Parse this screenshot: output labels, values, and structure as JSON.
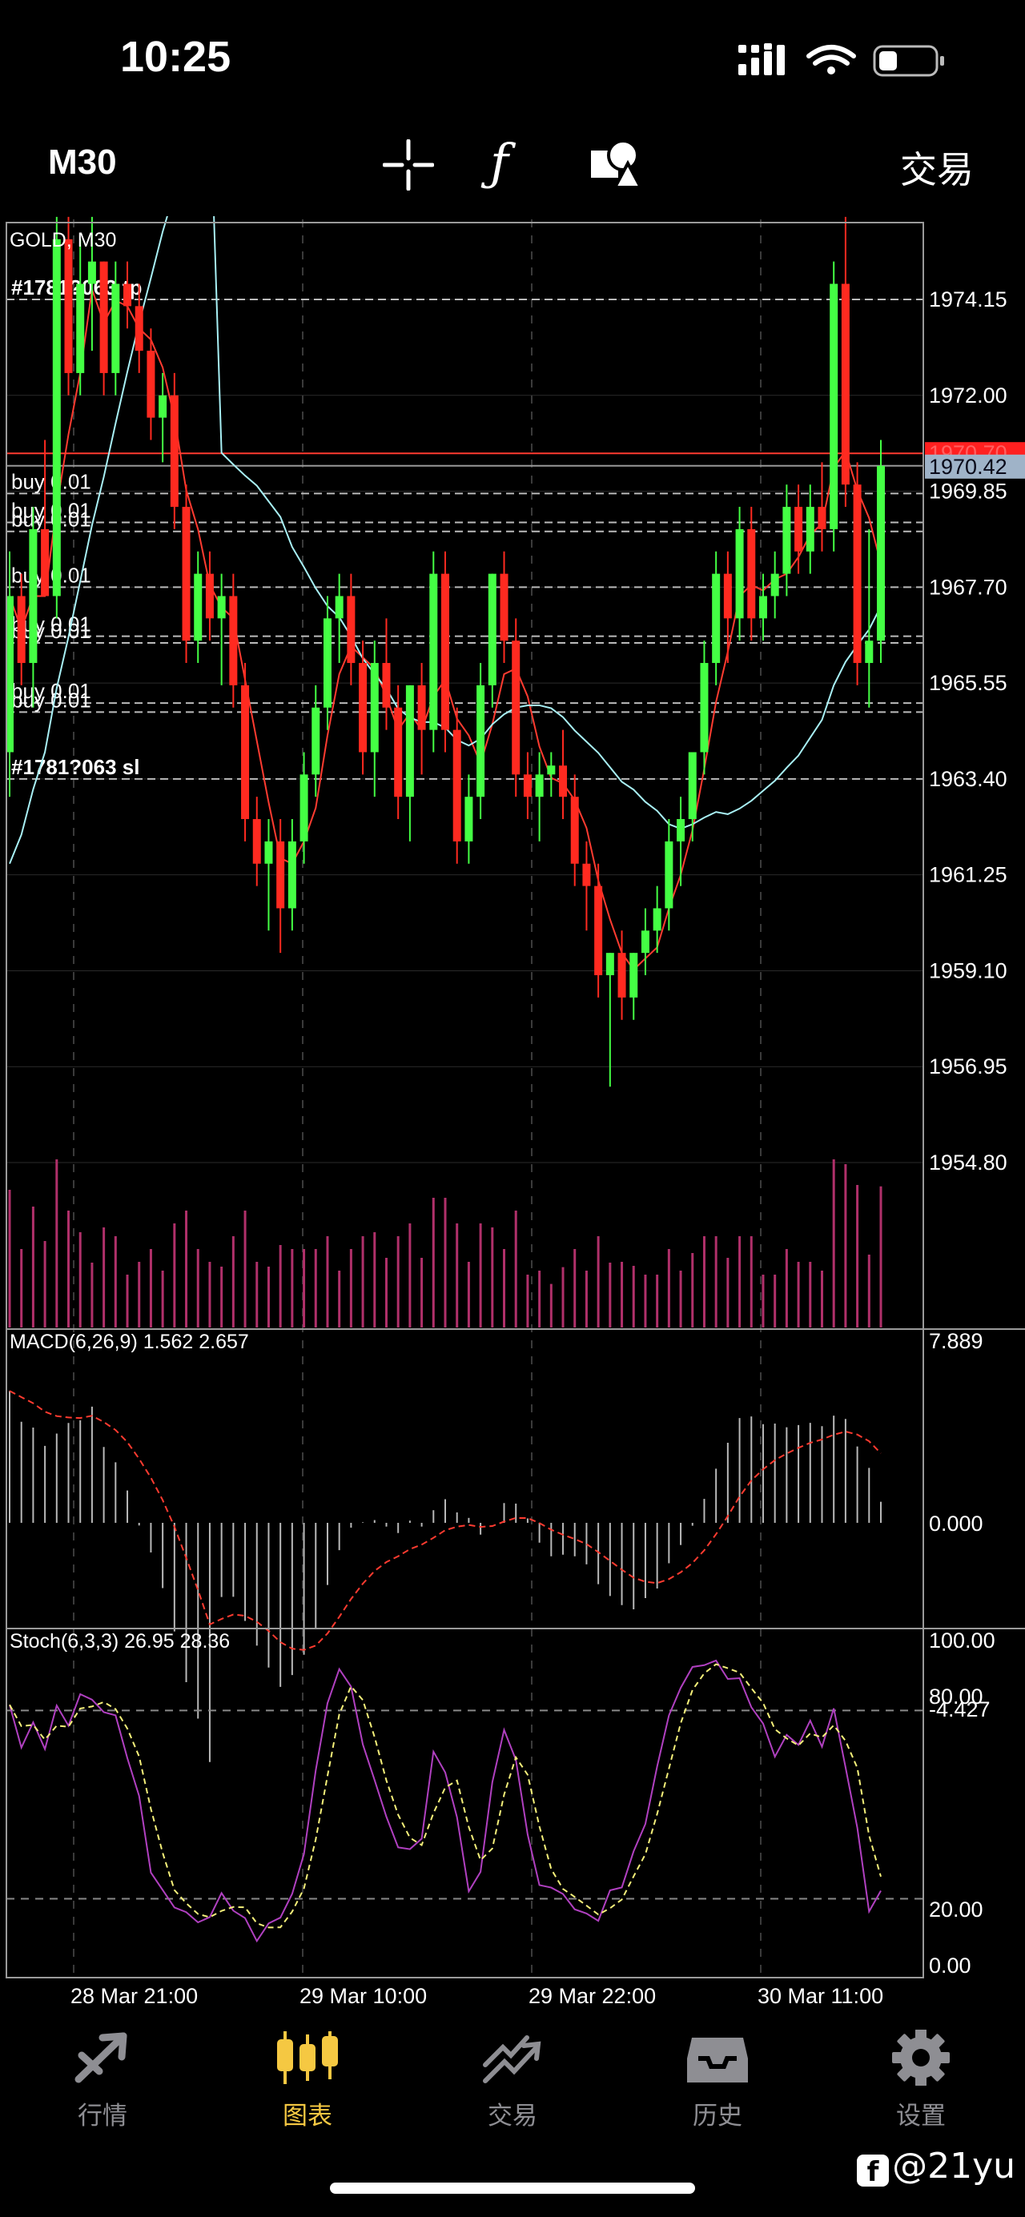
{
  "status_bar": {
    "time": "10:25"
  },
  "toolbar": {
    "timeframe": "M30",
    "trade_label": "交易",
    "icons": [
      "crosshair-icon",
      "function-icon",
      "objects-icon"
    ]
  },
  "chart": {
    "symbol_label": "GOLD, M30",
    "price_axis_labels": [
      "1974.15",
      "1972.00",
      "1969.85",
      "1967.70",
      "1965.55",
      "1963.40",
      "1961.25",
      "1959.10",
      "1956.95",
      "1954.80"
    ],
    "current_bid": "1970.42",
    "current_ask": "1970.70",
    "order_labels": {
      "tp": "#1781?063 tp",
      "sl": "#1781?063 sl",
      "buy": "buy 0.01"
    },
    "macd_label": "MACD(6,26,9) 1.562 2.657",
    "macd_axis": [
      "7.889",
      "0.000",
      "-4.427"
    ],
    "stoch_label": "Stoch(6,3,3) 26.95 28.36",
    "stoch_axis": [
      "100.00",
      "80.00",
      "20.00",
      "0.00"
    ],
    "time_labels": [
      "28 Mar 21:00",
      "29 Mar 10:00",
      "29 Mar 22:00",
      "30 Mar 11:00"
    ]
  },
  "chart_data": {
    "type": "candlestick",
    "symbol": "GOLD",
    "timeframe": "M30",
    "y_range": [
      1954.8,
      1976.0
    ],
    "candles": [
      [
        1964.0,
        1968.5,
        1963.0,
        1967.5
      ],
      [
        1967.5,
        1968.0,
        1965.5,
        1966.0
      ],
      [
        1966.0,
        1969.5,
        1965.0,
        1969.0
      ],
      [
        1969.0,
        1971.0,
        1967.5,
        1967.5
      ],
      [
        1967.5,
        1976.0,
        1967.0,
        1975.5
      ],
      [
        1975.5,
        1976.0,
        1972.0,
        1972.5
      ],
      [
        1972.5,
        1975.5,
        1972.0,
        1974.5
      ],
      [
        1974.5,
        1976.0,
        1973.0,
        1975.0
      ],
      [
        1975.0,
        1975.0,
        1972.0,
        1972.5
      ],
      [
        1972.5,
        1975.0,
        1972.0,
        1974.5
      ],
      [
        1974.5,
        1975.0,
        1973.5,
        1974.0
      ],
      [
        1974.0,
        1974.5,
        1972.5,
        1973.0
      ],
      [
        1973.0,
        1973.5,
        1971.0,
        1971.5
      ],
      [
        1971.5,
        1972.5,
        1970.5,
        1972.0
      ],
      [
        1972.0,
        1972.5,
        1969.0,
        1969.5
      ],
      [
        1969.5,
        1970.0,
        1966.0,
        1966.5
      ],
      [
        1966.5,
        1968.5,
        1966.0,
        1968.0
      ],
      [
        1968.0,
        1968.5,
        1966.5,
        1967.0
      ],
      [
        1967.0,
        1968.0,
        1965.5,
        1967.5
      ],
      [
        1967.5,
        1968.0,
        1965.0,
        1965.5
      ],
      [
        1965.5,
        1966.0,
        1962.0,
        1962.5
      ],
      [
        1962.5,
        1963.0,
        1961.0,
        1961.5
      ],
      [
        1961.5,
        1962.5,
        1960.0,
        1962.0
      ],
      [
        1962.0,
        1962.5,
        1959.5,
        1960.5
      ],
      [
        1960.5,
        1962.5,
        1960.0,
        1962.0
      ],
      [
        1962.0,
        1964.0,
        1961.5,
        1963.5
      ],
      [
        1963.5,
        1965.5,
        1963.0,
        1965.0
      ],
      [
        1965.0,
        1967.5,
        1964.5,
        1967.0
      ],
      [
        1967.0,
        1968.0,
        1966.0,
        1967.5
      ],
      [
        1967.5,
        1968.0,
        1965.5,
        1966.0
      ],
      [
        1966.0,
        1966.5,
        1963.5,
        1964.0
      ],
      [
        1964.0,
        1966.5,
        1963.0,
        1966.0
      ],
      [
        1966.0,
        1967.0,
        1964.5,
        1965.0
      ],
      [
        1965.0,
        1965.5,
        1962.5,
        1963.0
      ],
      [
        1963.0,
        1965.5,
        1962.0,
        1965.5
      ],
      [
        1965.5,
        1966.0,
        1963.5,
        1964.5
      ],
      [
        1964.5,
        1968.5,
        1964.0,
        1968.0
      ],
      [
        1968.0,
        1968.5,
        1964.0,
        1964.5
      ],
      [
        1964.5,
        1965.0,
        1961.5,
        1962.0
      ],
      [
        1962.0,
        1963.5,
        1961.5,
        1963.0
      ],
      [
        1963.0,
        1966.0,
        1962.5,
        1965.5
      ],
      [
        1965.5,
        1968.0,
        1965.0,
        1968.0
      ],
      [
        1968.0,
        1968.5,
        1966.0,
        1966.5
      ],
      [
        1966.5,
        1967.0,
        1963.0,
        1963.5
      ],
      [
        1963.5,
        1964.0,
        1962.5,
        1963.0
      ],
      [
        1963.0,
        1964.0,
        1962.0,
        1963.5
      ],
      [
        1963.5,
        1964.0,
        1963.0,
        1963.7
      ],
      [
        1963.7,
        1964.5,
        1962.5,
        1963.0
      ],
      [
        1963.0,
        1963.5,
        1961.0,
        1961.5
      ],
      [
        1961.5,
        1962.0,
        1960.0,
        1961.0
      ],
      [
        1961.0,
        1961.5,
        1958.5,
        1959.0
      ],
      [
        1959.0,
        1959.5,
        1956.5,
        1959.5
      ],
      [
        1959.5,
        1960.0,
        1958.0,
        1958.5
      ],
      [
        1958.5,
        1959.5,
        1958.0,
        1959.5
      ],
      [
        1959.5,
        1960.5,
        1959.0,
        1960.0
      ],
      [
        1960.0,
        1961.0,
        1959.5,
        1960.5
      ],
      [
        1960.5,
        1962.5,
        1960.0,
        1962.0
      ],
      [
        1962.0,
        1963.0,
        1961.0,
        1962.5
      ],
      [
        1962.5,
        1964.0,
        1962.0,
        1964.0
      ],
      [
        1964.0,
        1966.5,
        1963.5,
        1966.0
      ],
      [
        1966.0,
        1968.5,
        1965.5,
        1968.0
      ],
      [
        1968.0,
        1968.5,
        1966.0,
        1967.0
      ],
      [
        1967.0,
        1969.5,
        1966.5,
        1969.0
      ],
      [
        1969.0,
        1969.5,
        1966.5,
        1967.0
      ],
      [
        1967.0,
        1968.0,
        1966.5,
        1967.5
      ],
      [
        1967.5,
        1968.5,
        1967.0,
        1968.0
      ],
      [
        1968.0,
        1970.0,
        1967.5,
        1969.5
      ],
      [
        1969.5,
        1970.0,
        1968.0,
        1968.5
      ],
      [
        1968.5,
        1970.0,
        1968.0,
        1969.5
      ],
      [
        1969.5,
        1970.5,
        1968.5,
        1969.0
      ],
      [
        1969.0,
        1975.0,
        1968.5,
        1974.5
      ],
      [
        1974.5,
        1976.0,
        1969.5,
        1970.0
      ],
      [
        1970.0,
        1970.5,
        1965.5,
        1966.0
      ],
      [
        1966.0,
        1969.0,
        1965.0,
        1966.5
      ],
      [
        1966.5,
        1971.0,
        1966.0,
        1970.42
      ]
    ],
    "moving_averages": [
      {
        "color": "#ff3b30",
        "period": "fast"
      },
      {
        "color": "#a8f0f5",
        "period": "slow"
      }
    ],
    "macd": {
      "label": "MACD(6,26,9)",
      "main": 1.562,
      "signal": 2.657,
      "range": [
        -4.427,
        7.889
      ]
    },
    "stochastic": {
      "label": "Stoch(6,3,3)",
      "main": 26.95,
      "signal": 28.36,
      "levels": [
        20,
        80
      ],
      "range": [
        0,
        100
      ]
    },
    "colors": {
      "bull": "#44ff44",
      "bear": "#ff2a20",
      "grid": "#4a4a4a",
      "order_line": "#bbbbbb"
    }
  },
  "tabbar": {
    "items": [
      {
        "label": "行情",
        "icon": "quotes-icon"
      },
      {
        "label": "图表",
        "icon": "chart-icon",
        "active": true
      },
      {
        "label": "交易",
        "icon": "trade-icon"
      },
      {
        "label": "历史",
        "icon": "history-icon"
      },
      {
        "label": "设置",
        "icon": "settings-icon"
      }
    ]
  },
  "watermark": "@21yu"
}
